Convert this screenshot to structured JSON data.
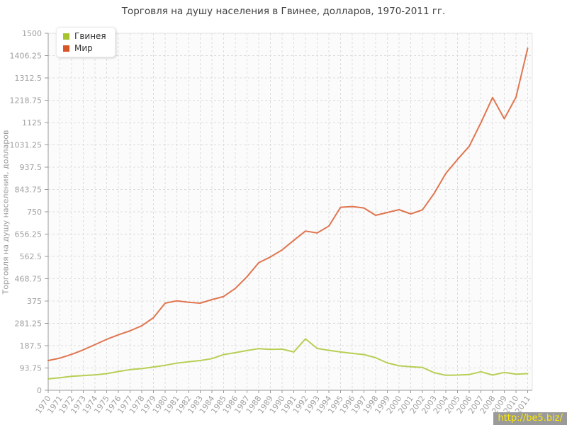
{
  "title": "Торговля на душу населения в Гвинее, долларов, 1970-2011 гг.",
  "y_axis_title": "Торговля на душу населения, долларов",
  "watermark": "http://be5.biz/",
  "colors": {
    "plot_bg": "#fbfbfb",
    "grid": "#dcdcdc",
    "axis": "#999999",
    "tick_label": "#a0a0a0",
    "border": "#e6e6e6",
    "title": "#404040",
    "watermark_bg": "#9a9a9a",
    "watermark_text": "#ffeb00"
  },
  "chart_data": {
    "type": "line",
    "title": "Торговля на душу населения в Гвинее, долларов, 1970-2011 гг.",
    "xlabel": "",
    "ylabel": "Торговля на душу населения, долларов",
    "ylim": [
      0,
      1500
    ],
    "yticks": [
      0,
      93.75,
      187.5,
      281.25,
      375,
      468.75,
      562.5,
      656.25,
      750,
      843.75,
      937.5,
      1031.25,
      1125,
      1218.75,
      1312.5,
      1406.25,
      1500
    ],
    "grid": true,
    "legend_position": "top-left",
    "x": [
      1970,
      1971,
      1972,
      1973,
      1974,
      1975,
      1976,
      1977,
      1978,
      1979,
      1980,
      1981,
      1982,
      1983,
      1984,
      1985,
      1986,
      1987,
      1988,
      1989,
      1990,
      1991,
      1992,
      1993,
      1994,
      1995,
      1996,
      1997,
      1998,
      1999,
      2000,
      2001,
      2002,
      2003,
      2004,
      2005,
      2006,
      2007,
      2008,
      2009,
      2010,
      2011
    ],
    "series": [
      {
        "name": "Гвинея",
        "color": "#a6c42d",
        "values": [
          48,
          53,
          59,
          62,
          65,
          70,
          79,
          87,
          91,
          98,
          105,
          114,
          120,
          125,
          133,
          150,
          158,
          167,
          175,
          172,
          173,
          161,
          216,
          176,
          168,
          161,
          155,
          150,
          137,
          115,
          103,
          99,
          96,
          74,
          63,
          64,
          66,
          78,
          64,
          75,
          68,
          70
        ]
      },
      {
        "name": "Мир",
        "color": "#da5526",
        "values": [
          125,
          135,
          151,
          170,
          192,
          214,
          233,
          250,
          271,
          305,
          366,
          376,
          370,
          366,
          381,
          394,
          428,
          477,
          536,
          560,
          590,
          630,
          669,
          661,
          690,
          769,
          772,
          766,
          735,
          747,
          759,
          741,
          758,
          827,
          911,
          970,
          1025,
          1124,
          1230,
          1141,
          1231,
          1437
        ]
      }
    ]
  }
}
